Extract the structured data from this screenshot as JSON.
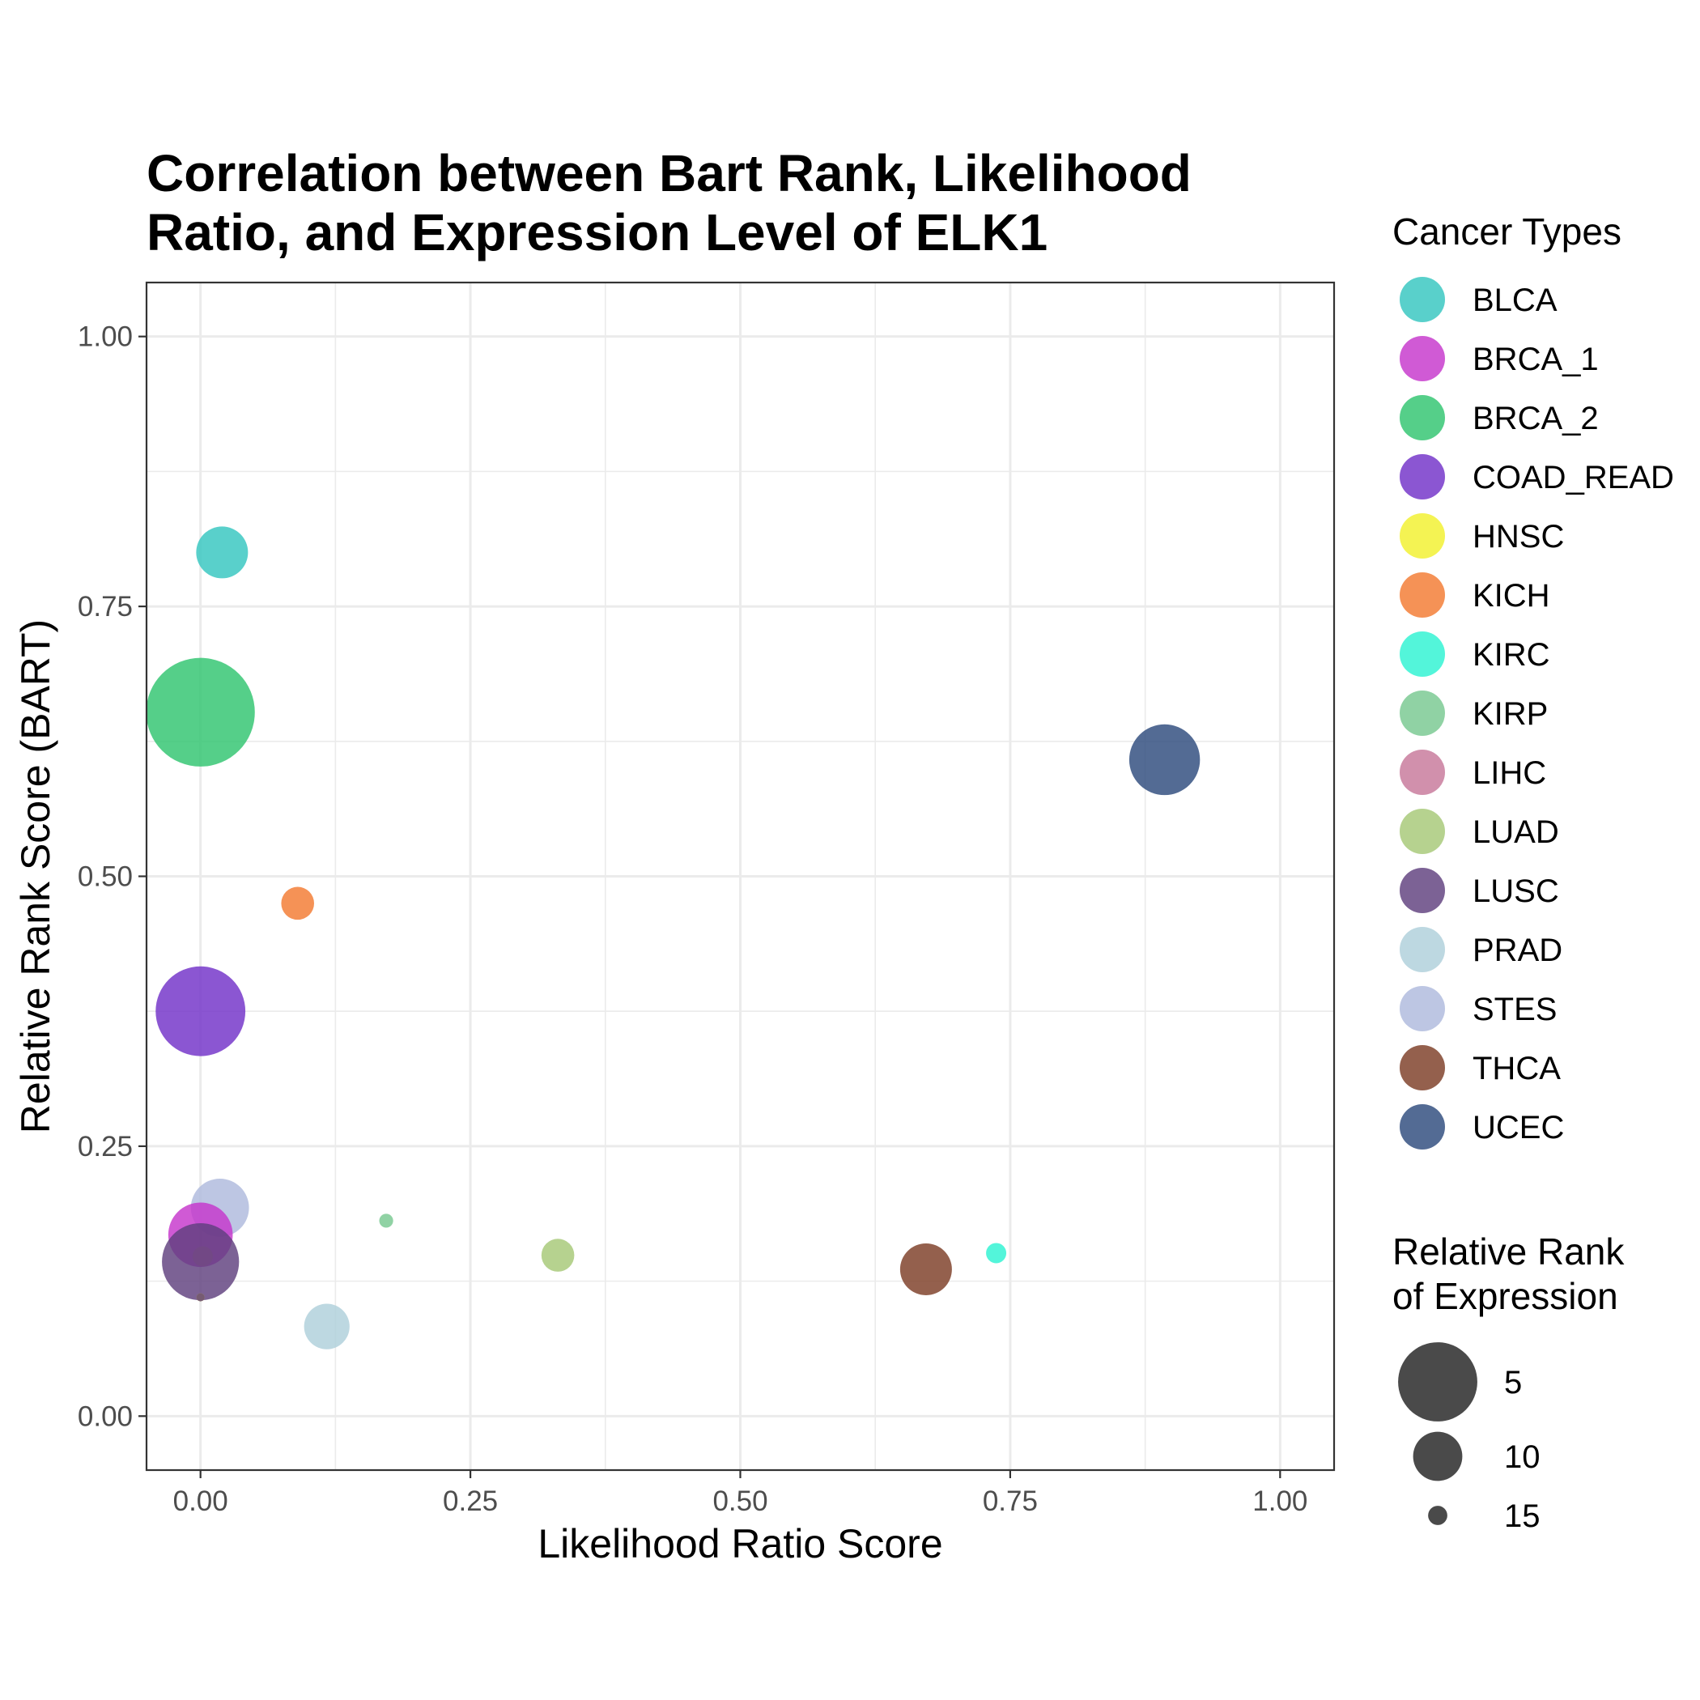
{
  "chart_data": {
    "type": "scatter",
    "title_lines": [
      "Correlation between Bart Rank, Likelihood",
      "Ratio, and Expression Level of ELK1"
    ],
    "xlabel": "Likelihood Ratio Score",
    "ylabel": "Relative Rank Score (BART)",
    "xlim": [
      -0.05,
      1.05
    ],
    "ylim": [
      -0.05,
      1.05
    ],
    "x_ticks": [
      0,
      0.25,
      0.5,
      0.75,
      1
    ],
    "x_tick_labels": [
      "0.00",
      "0.25",
      "0.50",
      "0.75",
      "1.00"
    ],
    "y_ticks": [
      0,
      0.25,
      0.5,
      0.75,
      1
    ],
    "y_tick_labels": [
      "0.00",
      "0.25",
      "0.50",
      "0.75",
      "1.00"
    ],
    "grid": true,
    "legend_color_title": "Cancer Types",
    "legend_size_title_lines": [
      "Relative Rank",
      "of Expression"
    ],
    "legend_placement": "right",
    "series": [
      {
        "name": "BLCA",
        "color": "#35C6C0"
      },
      {
        "name": "BRCA_1",
        "color": "#C636CC"
      },
      {
        "name": "BRCA_2",
        "color": "#2FC46F"
      },
      {
        "name": "COAD_READ",
        "color": "#7131C8"
      },
      {
        "name": "HNSC",
        "color": "#F2F02D"
      },
      {
        "name": "KICH",
        "color": "#F37A31"
      },
      {
        "name": "KIRC",
        "color": "#2DF3D2"
      },
      {
        "name": "KIRP",
        "color": "#78C890"
      },
      {
        "name": "LIHC",
        "color": "#C7779A"
      },
      {
        "name": "LUAD",
        "color": "#A6C876"
      },
      {
        "name": "LUSC",
        "color": "#5F3F7E"
      },
      {
        "name": "PRAD",
        "color": "#AED0DA"
      },
      {
        "name": "STES",
        "color": "#AFB9DD"
      },
      {
        "name": "THCA",
        "color": "#7D3D26"
      },
      {
        "name": "UCEC",
        "color": "#2D4A7C"
      }
    ],
    "points": [
      {
        "series": "BLCA",
        "x": 0.02,
        "y": 0.8,
        "size": 10
      },
      {
        "series": "BRCA_2",
        "x": 0.0,
        "y": 0.652,
        "size": 1
      },
      {
        "series": "UCEC",
        "x": 0.893,
        "y": 0.608,
        "size": 7
      },
      {
        "series": "KICH",
        "x": 0.09,
        "y": 0.475,
        "size": 13
      },
      {
        "series": "COAD_READ",
        "x": 0.0,
        "y": 0.375,
        "size": 4
      },
      {
        "series": "STES",
        "x": 0.018,
        "y": 0.193,
        "size": 9
      },
      {
        "series": "KIRP",
        "x": 0.172,
        "y": 0.181,
        "size": 16
      },
      {
        "series": "BRCA_1",
        "x": 0.0,
        "y": 0.168,
        "size": 8
      },
      {
        "series": "KIRC",
        "x": 0.737,
        "y": 0.151,
        "size": 15
      },
      {
        "series": "LUAD",
        "x": 0.331,
        "y": 0.149,
        "size": 13
      },
      {
        "series": "LIHC",
        "x": 0.002,
        "y": 0.148,
        "size": 15
      },
      {
        "series": "THCA",
        "x": 0.672,
        "y": 0.136,
        "size": 10
      },
      {
        "series": "LUSC",
        "x": 0.0,
        "y": 0.143,
        "size": 6
      },
      {
        "series": "HNSC",
        "x": 0.0,
        "y": 0.11,
        "size": 17
      },
      {
        "series": "LUSC",
        "x": 0.0,
        "y": 0.11,
        "size": 17
      },
      {
        "series": "PRAD",
        "x": 0.117,
        "y": 0.083,
        "size": 11
      }
    ],
    "size_legend": [
      {
        "label": "5",
        "size": 5
      },
      {
        "label": "10",
        "size": 10
      },
      {
        "label": "15",
        "size": 15
      }
    ]
  }
}
